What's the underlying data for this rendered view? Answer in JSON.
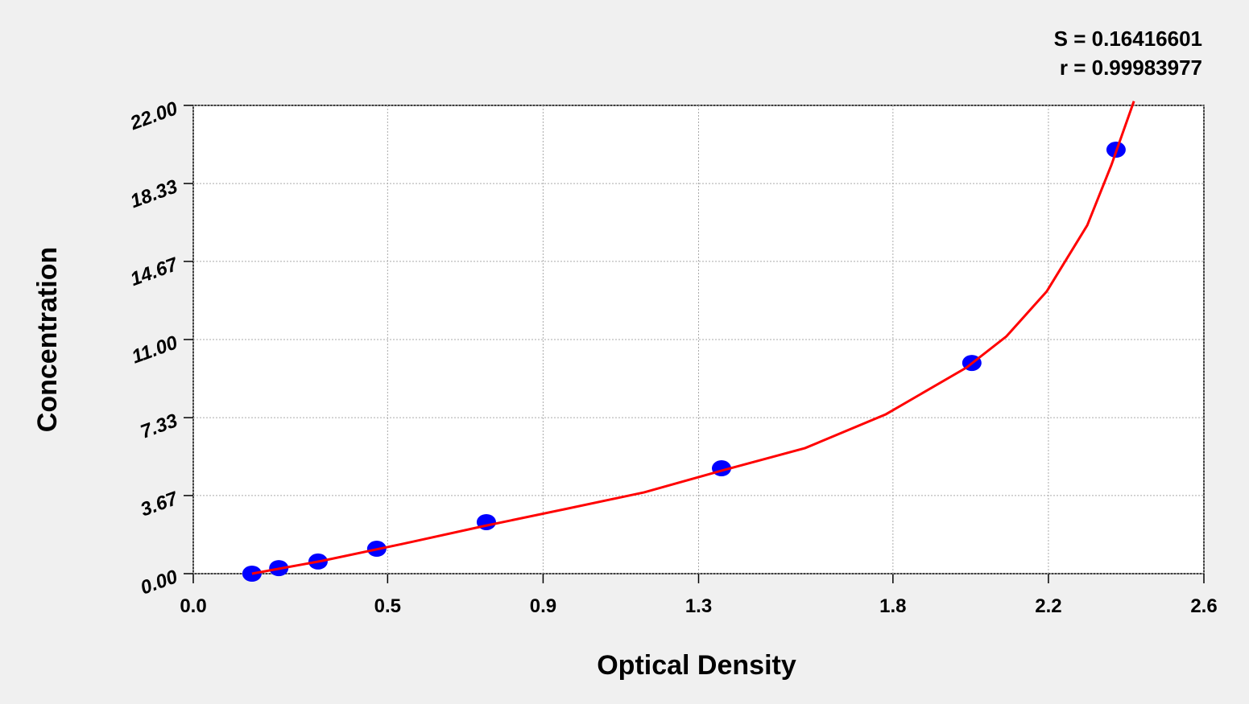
{
  "chart_data": {
    "type": "scatter",
    "title_annotations": [
      "S = 0.16416601",
      "r = 0.99983977"
    ],
    "xlabel": "Optical Density",
    "ylabel": "Concentration",
    "xlim": [
      0,
      2.6
    ],
    "ylim": [
      0,
      22
    ],
    "xticks": [
      {
        "value": 0,
        "label": "0.0"
      },
      0.5,
      0.9,
      1.3,
      1.8,
      2.2,
      2.6
    ],
    "yticks": [
      {
        "value": 0,
        "label": "0.00"
      },
      3.67,
      7.33,
      {
        "value": 11,
        "label": "11.00"
      },
      14.67,
      18.33,
      {
        "value": 22,
        "label": "22.00"
      }
    ],
    "grid": true,
    "series": [
      {
        "color": "#0000ff",
        "x": [
          0.151,
          0.22,
          0.321,
          0.472,
          0.754,
          1.359,
          2.003,
          2.374
        ],
        "values": [
          0,
          0.26,
          0.57,
          1.17,
          2.42,
          4.95,
          9.9,
          19.92
        ]
      }
    ],
    "fit": {
      "color": "#ff0000",
      "x": [
        0.151,
        0.331,
        0.539,
        0.746,
        0.953,
        1.16,
        1.367,
        1.574,
        1.782,
        1.989,
        2.092,
        2.196,
        2.3,
        2.362,
        2.42
      ],
      "values": [
        0,
        0.6,
        1.4,
        2.23,
        3.02,
        3.82,
        4.88,
        5.9,
        7.49,
        9.68,
        11.15,
        13.27,
        16.37,
        19.2,
        22.2
      ]
    }
  }
}
